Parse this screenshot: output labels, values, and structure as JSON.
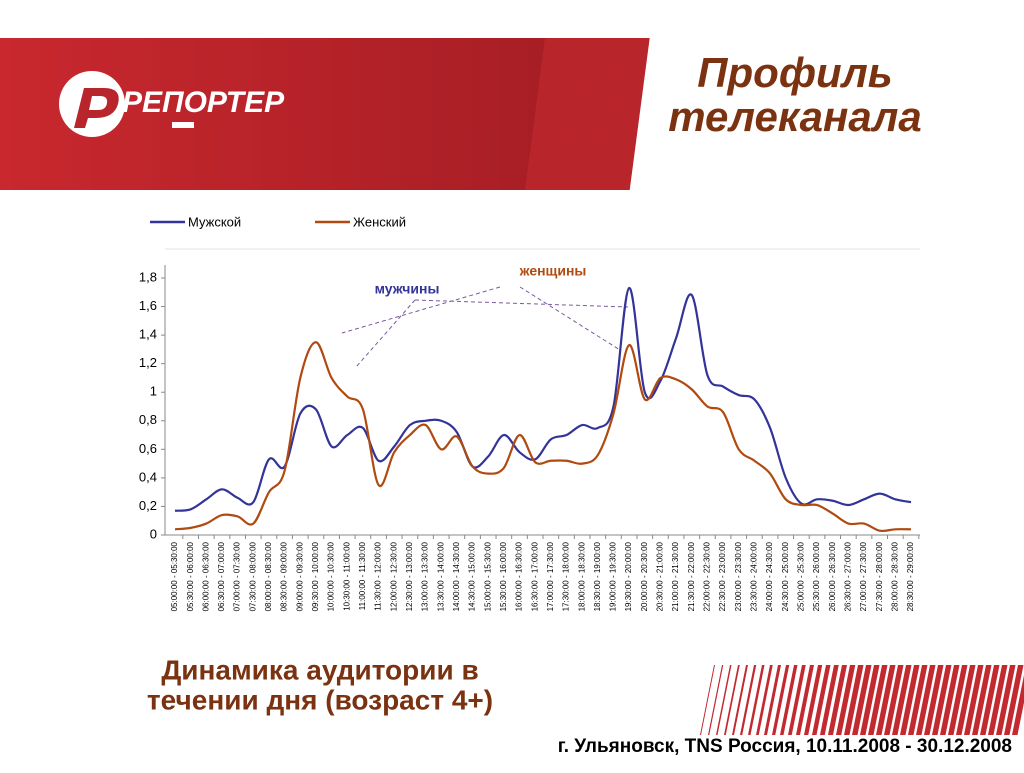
{
  "slide": {
    "logo": "РЕПОРТЕР",
    "title_lines": [
      "Профиль",
      "телеканала"
    ],
    "caption_lines": [
      "Динамика аудитории в",
      "течении дня (возраст 4+)"
    ],
    "source": "г. Ульяновск, TNS Россия, 10.11.2008 - 30.12.2008"
  },
  "chart_data": {
    "type": "line",
    "categories": [
      "05:00:00 - 05:30:00",
      "05:30:00 - 06:00:00",
      "06:00:00 - 06:30:00",
      "06:30:00 - 07:00:00",
      "07:00:00 - 07:30:00",
      "07:30:00 - 08:00:00",
      "08:00:00 - 08:30:00",
      "08:30:00 - 09:00:00",
      "09:00:00 - 09:30:00",
      "09:30:00 - 10:00:00",
      "10:00:00 - 10:30:00",
      "10:30:00 - 11:00:00",
      "11:00:00 - 11:30:00",
      "11:30:00 - 12:00:00",
      "12:00:00 - 12:30:00",
      "12:30:00 - 13:00:00",
      "13:00:00 - 13:30:00",
      "13:30:00 - 14:00:00",
      "14:00:00 - 14:30:00",
      "14:30:00 - 15:00:00",
      "15:00:00 - 15:30:00",
      "15:30:00 - 16:00:00",
      "16:00:00 - 16:30:00",
      "16:30:00 - 17:00:00",
      "17:00:00 - 17:30:00",
      "17:30:00 - 18:00:00",
      "18:00:00 - 18:30:00",
      "18:30:00 - 19:00:00",
      "19:00:00 - 19:30:00",
      "19:30:00 - 20:00:00",
      "20:00:00 - 20:30:00",
      "20:30:00 - 21:00:00",
      "21:00:00 - 21:30:00",
      "21:30:00 - 22:00:00",
      "22:00:00 - 22:30:00",
      "22:30:00 - 23:00:00",
      "23:00:00 - 23:30:00",
      "23:30:00 - 24:00:00",
      "24:00:00 - 24:30:00",
      "24:30:00 - 25:00:00",
      "25:00:00 - 25:30:00",
      "25:30:00 - 26:00:00",
      "26:00:00 - 26:30:00",
      "26:30:00 - 27:00:00",
      "27:00:00 - 27:30:00",
      "27:30:00 - 28:00:00",
      "28:00:00 - 28:30:00",
      "28:30:00 - 29:00:00"
    ],
    "series": [
      {
        "name": "Мужской",
        "color": "#333399",
        "values": [
          0.17,
          0.18,
          0.25,
          0.32,
          0.26,
          0.23,
          0.53,
          0.48,
          0.85,
          0.88,
          0.62,
          0.7,
          0.75,
          0.52,
          0.62,
          0.77,
          0.8,
          0.8,
          0.72,
          0.48,
          0.55,
          0.7,
          0.58,
          0.53,
          0.67,
          0.7,
          0.77,
          0.75,
          0.9,
          1.73,
          1.0,
          1.08,
          1.38,
          1.68,
          1.12,
          1.04,
          0.98,
          0.95,
          0.75,
          0.4,
          0.22,
          0.25,
          0.24,
          0.21,
          0.25,
          0.29,
          0.25,
          0.23
        ]
      },
      {
        "name": "Женский",
        "color": "#b04a10",
        "values": [
          0.04,
          0.05,
          0.08,
          0.14,
          0.13,
          0.08,
          0.3,
          0.45,
          1.1,
          1.35,
          1.1,
          0.97,
          0.88,
          0.35,
          0.58,
          0.7,
          0.77,
          0.6,
          0.69,
          0.48,
          0.43,
          0.47,
          0.7,
          0.51,
          0.52,
          0.52,
          0.5,
          0.56,
          0.85,
          1.33,
          0.95,
          1.1,
          1.09,
          1.02,
          0.9,
          0.86,
          0.6,
          0.52,
          0.43,
          0.25,
          0.21,
          0.21,
          0.15,
          0.08,
          0.08,
          0.03,
          0.04,
          0.04
        ]
      }
    ],
    "ylim": [
      0,
      1.8
    ],
    "yticks": [
      0,
      {
        "value": 0.2,
        "label": "0,2"
      },
      {
        "value": 0.4,
        "label": "0,4"
      },
      {
        "value": 0.6,
        "label": "0,6"
      },
      {
        "value": 0.8,
        "label": "0,8"
      },
      1,
      {
        "value": 1.2,
        "label": "1,2"
      },
      {
        "value": 1.4,
        "label": "1,4"
      },
      {
        "value": 1.6,
        "label": "1,6"
      },
      {
        "value": 1.8,
        "label": "1,8"
      }
    ],
    "annotations": [
      "мужчины",
      "женщины"
    ],
    "legend": "top"
  }
}
